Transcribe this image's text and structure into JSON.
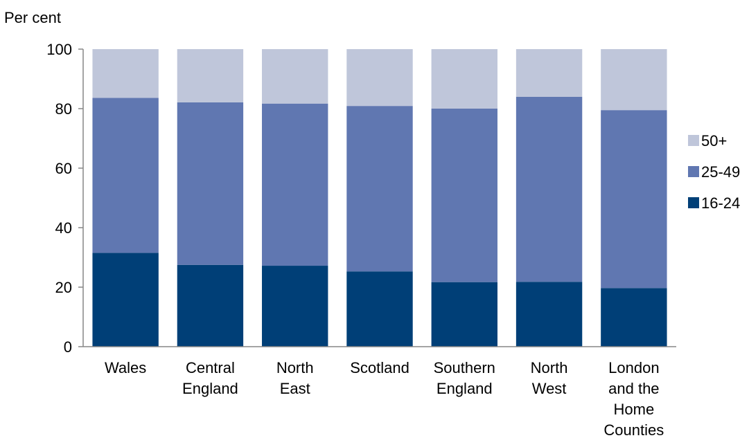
{
  "chart_data": {
    "type": "bar",
    "stacked": true,
    "ylabel": "Per cent",
    "ylim": [
      0,
      100
    ],
    "yticks": [
      0,
      20,
      40,
      60,
      80,
      100
    ],
    "grid": false,
    "legend_position": "right",
    "categories": [
      "Wales",
      "Central England",
      "North East",
      "Scotland",
      "Southern England",
      "North West",
      "London and the Home Counties"
    ],
    "category_lines": [
      [
        "Wales"
      ],
      [
        "Central",
        "England"
      ],
      [
        "North",
        "East"
      ],
      [
        "Scotland"
      ],
      [
        "Southern",
        "England"
      ],
      [
        "North",
        "West"
      ],
      [
        "London",
        "and the",
        "Home",
        "Counties"
      ]
    ],
    "series": [
      {
        "name": "16-24",
        "color": "#003F77",
        "values": [
          31.5,
          27.5,
          27.2,
          25.3,
          21.7,
          21.8,
          19.7
        ]
      },
      {
        "name": "25-49",
        "color": "#6077B1",
        "values": [
          52.1,
          54.6,
          54.5,
          55.6,
          58.3,
          62.2,
          59.8
        ]
      },
      {
        "name": "50+",
        "color": "#BFC6DA",
        "values": [
          16.4,
          17.9,
          18.3,
          19.1,
          20.0,
          16.0,
          20.5
        ]
      }
    ],
    "legend_order": [
      "50+",
      "25-49",
      "16-24"
    ]
  }
}
